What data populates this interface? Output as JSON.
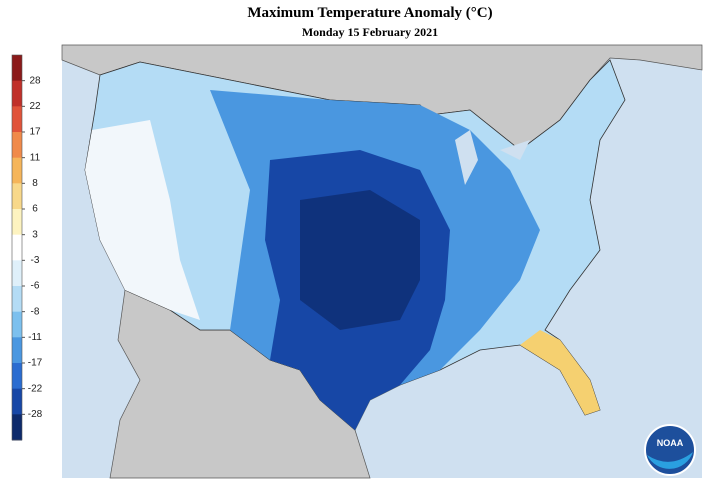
{
  "title": "Maximum Temperature Anomaly (°C)",
  "subtitle": "Monday 15 February 2021",
  "legend": {
    "ticks": [
      28,
      22,
      17,
      11,
      8,
      6,
      3,
      -3,
      -6,
      -8,
      -11,
      -17,
      -22,
      -28
    ],
    "colors": [
      "#8b1a1a",
      "#c0302a",
      "#e0533a",
      "#f08a4a",
      "#f5b55a",
      "#f8d88a",
      "#fdf3c0",
      "#ffffff",
      "#dff0fa",
      "#b4dcf5",
      "#7cc0ee",
      "#4a97e0",
      "#2a6cd0",
      "#1747a6",
      "#0d2a6b"
    ]
  },
  "logo": "NOAA"
}
